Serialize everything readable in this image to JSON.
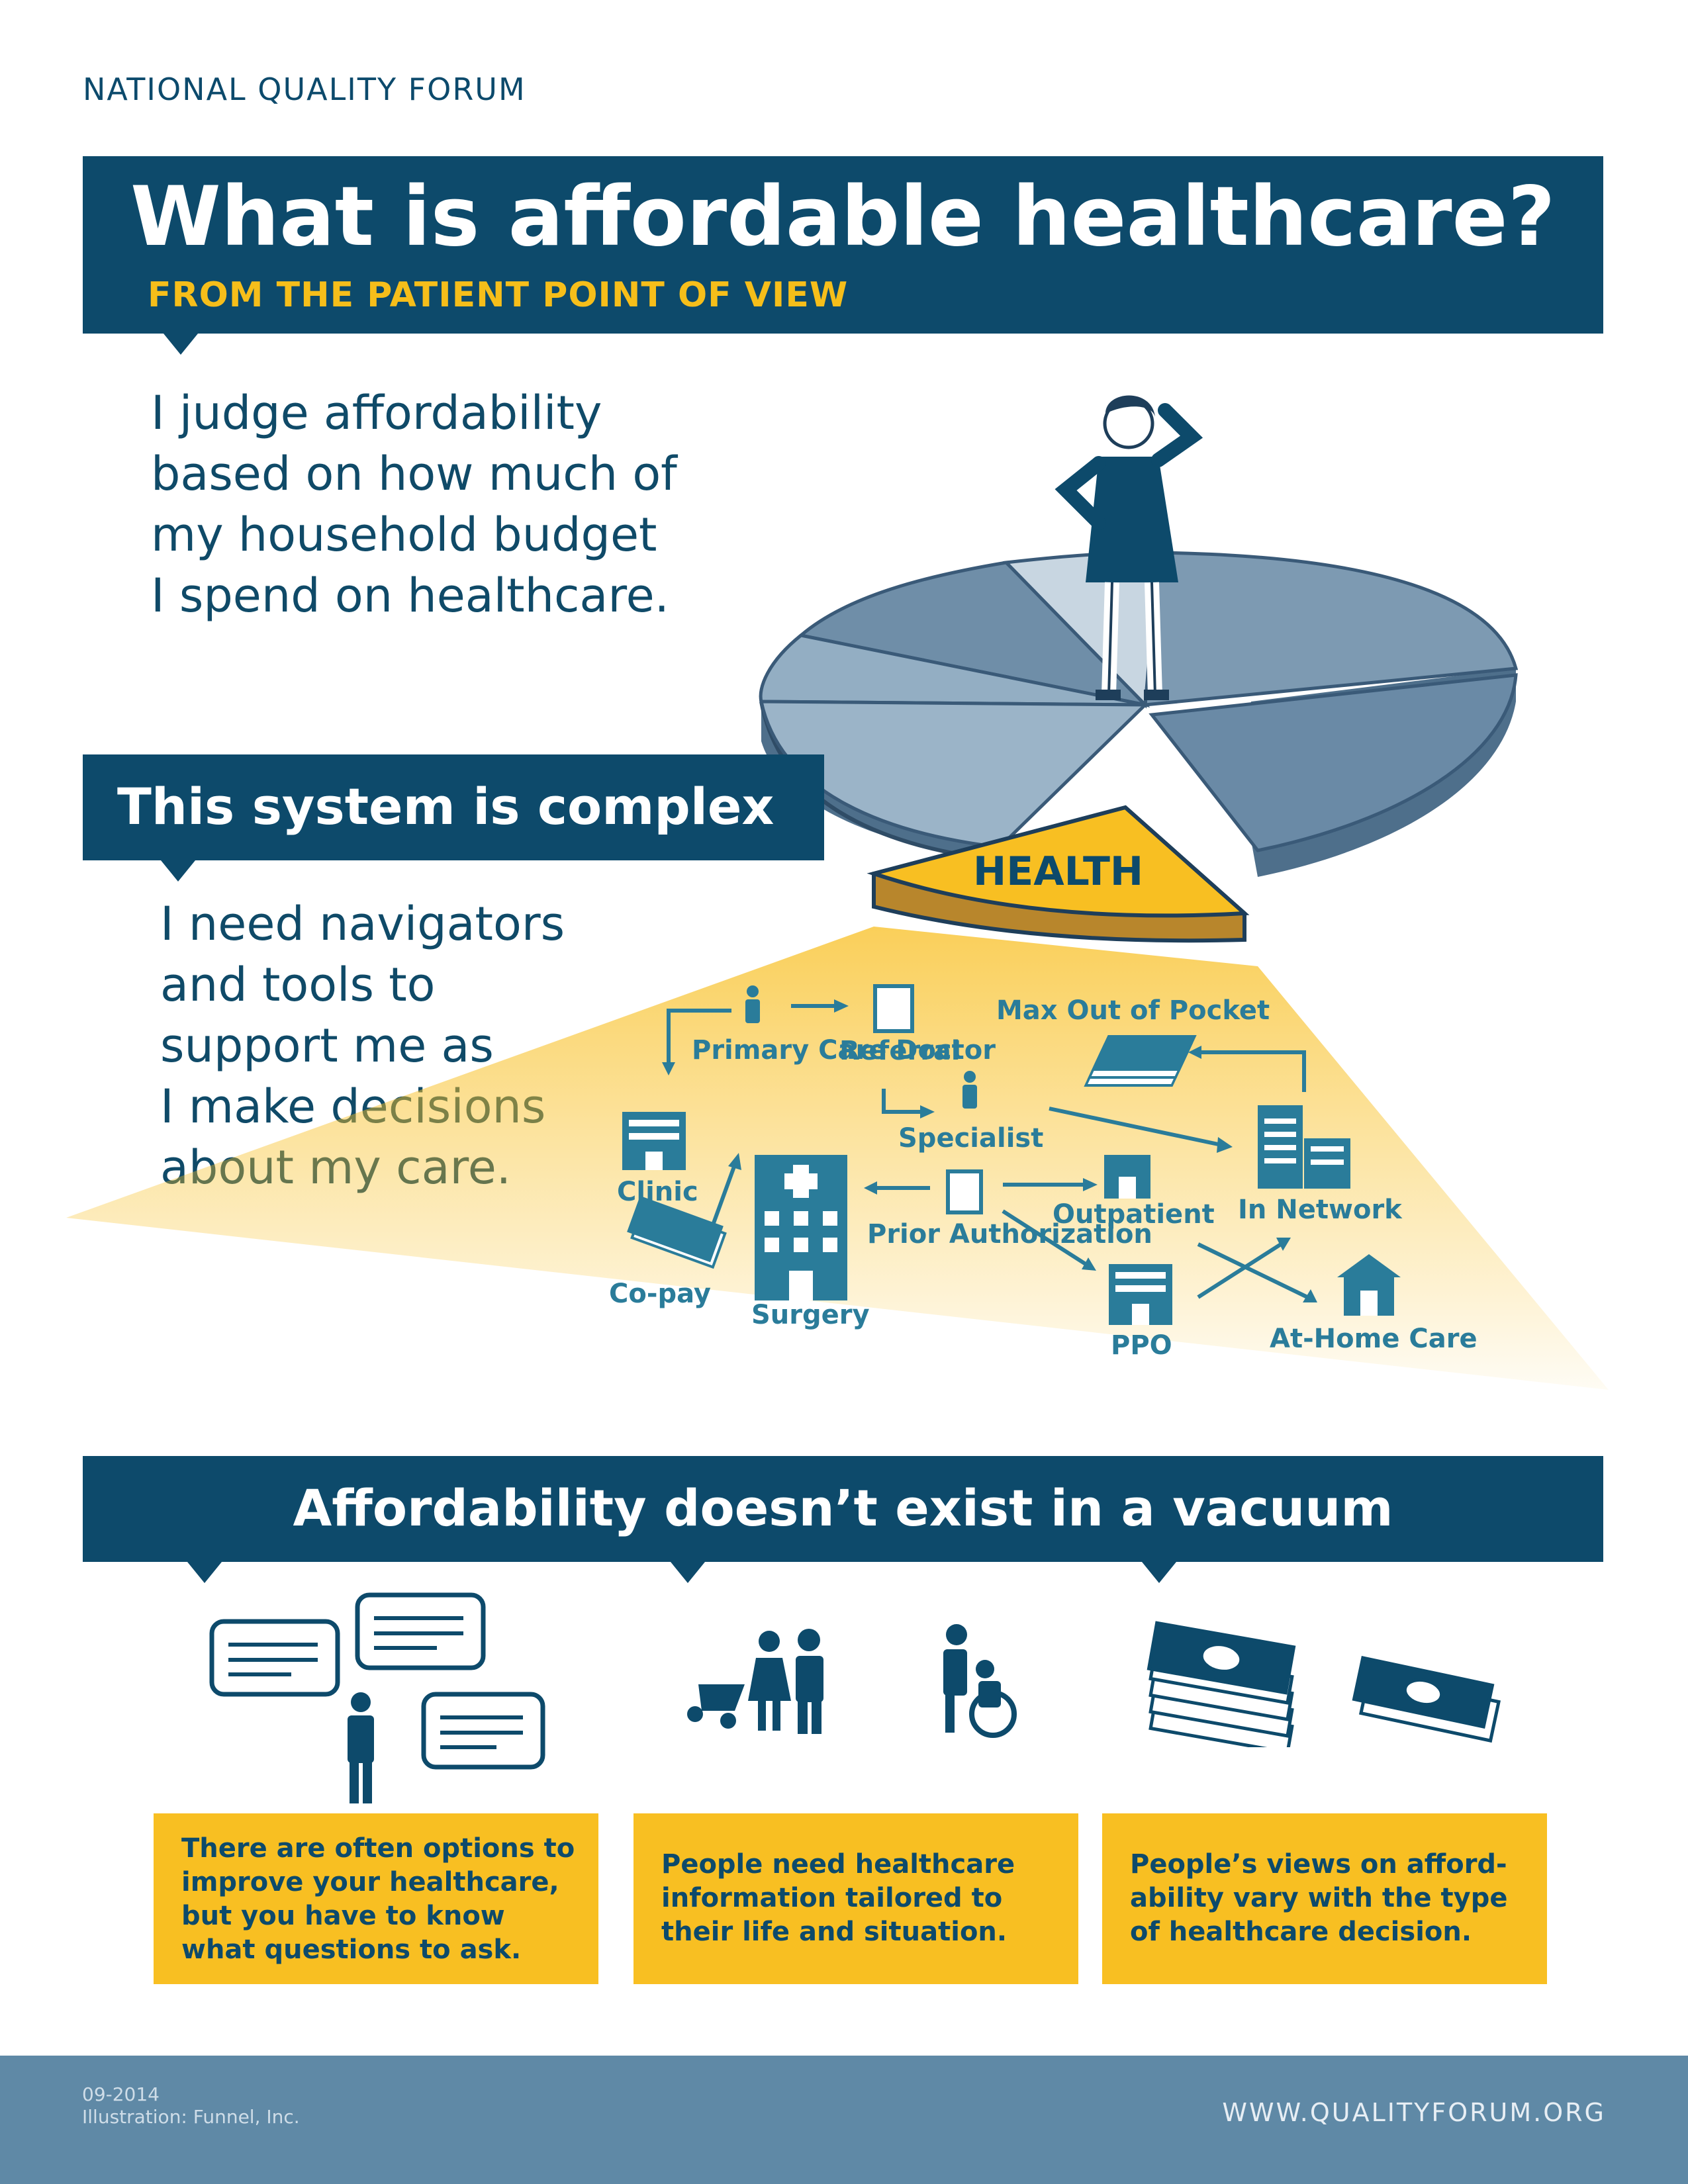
{
  "org": "NATIONAL QUALITY FORUM",
  "title": "What is affordable healthcare?",
  "subtitle": "FROM THE PATIENT POINT OF VIEW",
  "intro": "I judge affordability\nbased on how much of\nmy household budget\nI spend on healthcare.",
  "complex": {
    "heading": "This system is complex",
    "body": "I need navigators\nand tools to\nsupport me as\nI make decisions\nabout my care."
  },
  "pie_label": "HEALTH",
  "diagram": {
    "primary_care": "Primary\nCare\nDoctor",
    "referral": "Referral",
    "max_oop": "Max Out of Pocket",
    "specialist": "Specialist",
    "clinic": "Clinic",
    "in_network": "In Network",
    "outpatient": "Outpatient",
    "prior_auth": "Prior\nAuthorization",
    "co_pay": "Co-pay",
    "surgery": "Surgery",
    "ppo": "PPO",
    "at_home": "At-Home Care"
  },
  "vacuum": {
    "heading": "Affordability doesn’t exist in a vacuum",
    "cards": [
      "There are often options to improve your healthcare, but you have to know what questions to ask.",
      "People need healthcare information tailored to their life and situation.",
      "People’s views on afford-ability vary with the type of healthcare decision."
    ]
  },
  "footer": {
    "date": "09-2014",
    "credit": "Illustration: Funnel, Inc.",
    "url": "WWW.QUALITYFORUM.ORG"
  },
  "colors": {
    "navy": "#0d4a6b",
    "gold": "#f8bf22",
    "teal": "#2a7c9a",
    "footer": "#5f89a6"
  }
}
